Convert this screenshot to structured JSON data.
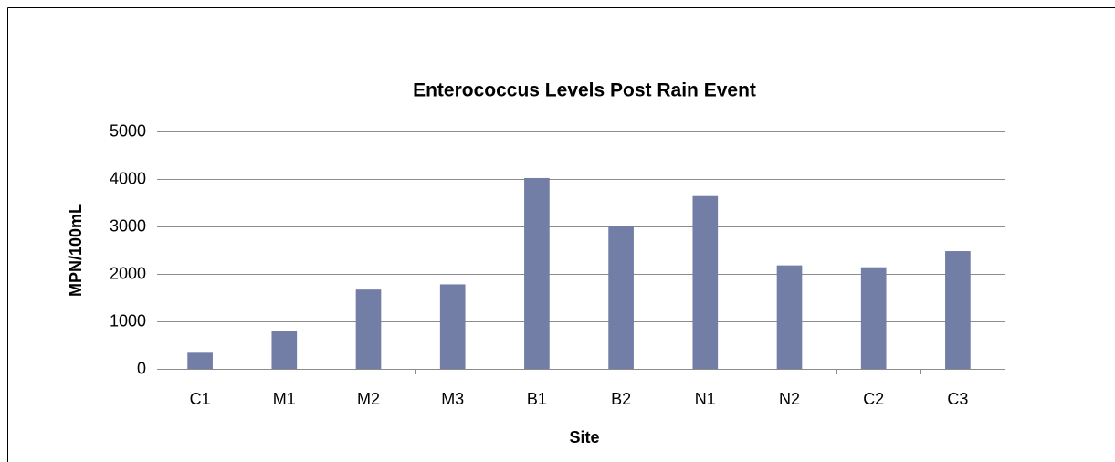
{
  "chart_data": {
    "type": "bar",
    "title": "Enterococcus Levels Post Rain Event",
    "x_label": "Site",
    "y_label": "MPN/100mL",
    "categories": [
      "C1",
      "M1",
      "M2",
      "M3",
      "B1",
      "B2",
      "N1",
      "N2",
      "C2",
      "C3"
    ],
    "values": [
      340,
      800,
      1670,
      1780,
      4020,
      3010,
      3640,
      2180,
      2140,
      2480
    ],
    "color": "#737ea6",
    "ylim": [
      0,
      5000
    ],
    "yticks": [
      0,
      1000,
      2000,
      3000,
      4000,
      5000
    ],
    "grid": true
  }
}
